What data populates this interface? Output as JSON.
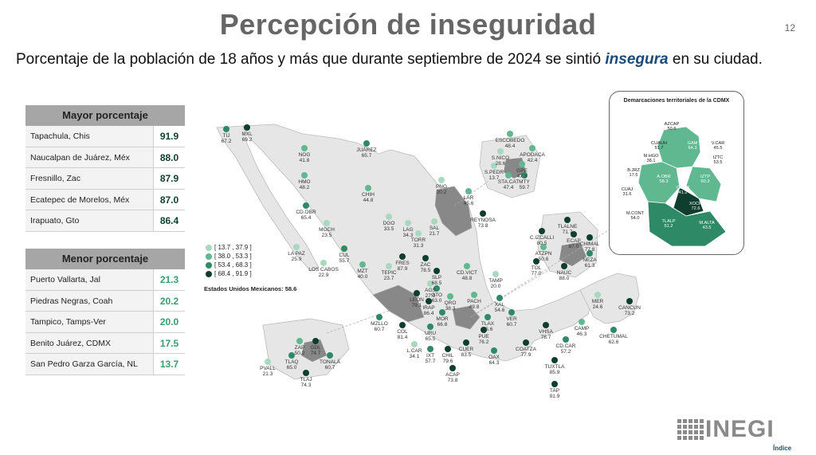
{
  "title": "Percepción de inseguridad",
  "slide_number": "12",
  "subtitle": {
    "before": "Porcentaje de la población de 18 años y más que durante septiembre de 2024 se sintió ",
    "emphasis": "insegura",
    "after": " en su ciudad."
  },
  "table_max": {
    "header": "Mayor porcentaje",
    "rows": [
      {
        "city": "Tapachula, Chis",
        "value": "91.9"
      },
      {
        "city": "Naucalpan de Juárez, Méx",
        "value": "88.0"
      },
      {
        "city": "Fresnillo, Zac",
        "value": "87.9"
      },
      {
        "city": "Ecatepec de Morelos, Méx",
        "value": "87.0"
      },
      {
        "city": "Irapuato, Gto",
        "value": "86.4"
      }
    ]
  },
  "table_min": {
    "header": "Menor porcentaje",
    "rows": [
      {
        "city": "Puerto Vallarta, Jal",
        "value": "21.3"
      },
      {
        "city": "Piedras Negras, Coah",
        "value": "20.2"
      },
      {
        "city": "Tampico, Tamps-Ver",
        "value": "20.0"
      },
      {
        "city": "Benito Juárez, CDMX",
        "value": "17.5"
      },
      {
        "city": "San Pedro Garza García, NL",
        "value": "13.7"
      }
    ]
  },
  "legend": [
    {
      "range": "[ 13.7 , 37.9 ]",
      "color": "#a8d8c0"
    },
    {
      "range": "[ 38.0 , 53.3 ]",
      "color": "#5fb88f"
    },
    {
      "range": "[ 53.4 , 68.3 ]",
      "color": "#2e8a66"
    },
    {
      "range": "[ 68.4 , 91.9 ]",
      "color": "#0f3d2e"
    }
  ],
  "national": "Estados Unidos Mexicanos: 58.6",
  "colors": {
    "c1": "#a8d8c0",
    "c2": "#5fb88f",
    "c3": "#2e8a66",
    "c4": "#0f3d2e",
    "land": "#e6e6e6",
    "highlight": "#888888"
  },
  "map_cities": [
    {
      "code": "TIJ",
      "value": "67.2",
      "c": 3
    },
    {
      "code": "MXL",
      "value": "69.2",
      "c": 4
    },
    {
      "code": "NOG",
      "value": "41.8",
      "c": 2
    },
    {
      "code": "JUÁREZ",
      "value": "65.7",
      "c": 3
    },
    {
      "code": "HMO",
      "value": "48.2",
      "c": 2
    },
    {
      "code": "CHIH",
      "value": "44.8",
      "c": 2
    },
    {
      "code": "CD.OBR",
      "value": "65.4",
      "c": 3
    },
    {
      "code": "MOCH",
      "value": "23.5",
      "c": 1
    },
    {
      "code": "LA PAZ",
      "value": "25.9",
      "c": 1
    },
    {
      "code": "CUL",
      "value": "55.7",
      "c": 3
    },
    {
      "code": "LOS CABOS",
      "value": "22.9",
      "c": 1
    },
    {
      "code": "MZT",
      "value": "40.0",
      "c": 2
    },
    {
      "code": "DGO",
      "value": "33.5",
      "c": 1
    },
    {
      "code": "TEPIC",
      "value": "23.7",
      "c": 1
    },
    {
      "code": "LAG",
      "value": "34.3",
      "c": 1
    },
    {
      "code": "TORR",
      "value": "31.3",
      "c": 1
    },
    {
      "code": "SAL",
      "value": "21.7",
      "c": 1
    },
    {
      "code": "PNG",
      "value": "20.2",
      "c": 1
    },
    {
      "code": "LAR",
      "value": "45.6",
      "c": 2
    },
    {
      "code": "REYNOSA",
      "value": "73.8",
      "c": 4
    },
    {
      "code": "FRES",
      "value": "87.9",
      "c": 4
    },
    {
      "code": "ZAC",
      "value": "78.5",
      "c": 4
    },
    {
      "code": "CD.VICT",
      "value": "48.8",
      "c": 2
    },
    {
      "code": "SLP",
      "value": "68.5",
      "c": 4
    },
    {
      "code": "AGS",
      "value": "27.0",
      "c": 1
    },
    {
      "code": "TAMP",
      "value": "20.0",
      "c": 1
    },
    {
      "code": "LEÓN",
      "value": "79.1",
      "c": 4
    },
    {
      "code": "GTO",
      "value": "63.0",
      "c": 3
    },
    {
      "code": "IRAP",
      "value": "86.4",
      "c": 4
    },
    {
      "code": "QRO",
      "value": "38.3",
      "c": 2
    },
    {
      "code": "PACH",
      "value": "49.8",
      "c": 2
    },
    {
      "code": "XAL",
      "value": "54.6",
      "c": 3
    },
    {
      "code": "MZLLO",
      "value": "60.7",
      "c": 3
    },
    {
      "code": "MOR",
      "value": "66.8",
      "c": 3
    },
    {
      "code": "TLAX",
      "value": "55.6",
      "c": 3
    },
    {
      "code": "VER",
      "value": "60.7",
      "c": 3
    },
    {
      "code": "COL",
      "value": "81.4",
      "c": 4
    },
    {
      "code": "URU",
      "value": "65.5",
      "c": 3
    },
    {
      "code": "PUE",
      "value": "76.2",
      "c": 4
    },
    {
      "code": "L.CAR",
      "value": "34.1",
      "c": 1
    },
    {
      "code": "IXT",
      "value": "57.7",
      "c": 3
    },
    {
      "code": "CHIL",
      "value": "79.6",
      "c": 4
    },
    {
      "code": "CUER",
      "value": "83.5",
      "c": 4
    },
    {
      "code": "ACAP",
      "value": "73.8",
      "c": 4
    },
    {
      "code": "OAX",
      "value": "64.3",
      "c": 3
    },
    {
      "code": "COATZA",
      "value": "77.9",
      "c": 4
    },
    {
      "code": "VHSA",
      "value": "78.7",
      "c": 4
    },
    {
      "code": "CD.CAR",
      "value": "57.2",
      "c": 3
    },
    {
      "code": "TUXTLA",
      "value": "85.9",
      "c": 4
    },
    {
      "code": "TAP",
      "value": "91.9",
      "c": 4
    },
    {
      "code": "CAMP",
      "value": "46.3",
      "c": 2
    },
    {
      "code": "MER",
      "value": "24.6",
      "c": 1
    },
    {
      "code": "CANCUN",
      "value": "73.2",
      "c": 4
    },
    {
      "code": "CHETUMAL",
      "value": "62.6",
      "c": 3
    },
    {
      "code": "ESCOBEDO",
      "value": "48.4",
      "c": 2
    },
    {
      "code": "S.NICO",
      "value": "28.6",
      "c": 1
    },
    {
      "code": "APODACA",
      "value": "42.4",
      "c": 2
    },
    {
      "code": "S.PEDR",
      "value": "13.7",
      "c": 1
    },
    {
      "code": "GPE",
      "value": "47.3",
      "c": 2
    },
    {
      "code": "MTY",
      "value": "59.7",
      "c": 3
    },
    {
      "code": "STA.CAT",
      "value": "47.4",
      "c": 2
    },
    {
      "code": "TLALNE",
      "value": "71.7",
      "c": 4
    },
    {
      "code": "C.IZCALLI",
      "value": "80.5",
      "c": 4
    },
    {
      "code": "ECAP",
      "value": "87.0",
      "c": 4
    },
    {
      "code": "CHIMAL",
      "value": "77.8",
      "c": 4
    },
    {
      "code": "ATZPN",
      "value": "50.6",
      "c": 2
    },
    {
      "code": "NEZA",
      "value": "61.3",
      "c": 3
    },
    {
      "code": "TOL",
      "value": "77.0",
      "c": 4
    },
    {
      "code": "NAUC",
      "value": "88.0",
      "c": 4
    },
    {
      "code": "ZAP",
      "value": "50.2",
      "c": 2
    },
    {
      "code": "GDL",
      "value": "74.7",
      "c": 4
    },
    {
      "code": "TLAQ",
      "value": "65.0",
      "c": 3
    },
    {
      "code": "TONALÁ",
      "value": "60.7",
      "c": 3
    },
    {
      "code": "PVALL",
      "value": "21.3",
      "c": 1
    },
    {
      "code": "TLAJ",
      "value": "74.3",
      "c": 4
    }
  ],
  "cdmx": {
    "title": "Demarcaciones territoriales de la CDMX",
    "labels": [
      {
        "code": "AZCAP",
        "value": "50.6"
      },
      {
        "code": "GAM",
        "value": "64.3"
      },
      {
        "code": "CUAUH",
        "value": "51.7"
      },
      {
        "code": "V.CAR",
        "value": "45.5"
      },
      {
        "code": "M.HGO",
        "value": "38.1"
      },
      {
        "code": "IZTC",
        "value": "53.5"
      },
      {
        "code": "B.JRZ",
        "value": "17.5"
      },
      {
        "code": "A.OBR",
        "value": "58.3"
      },
      {
        "code": "IZTP",
        "value": "60.3"
      },
      {
        "code": "CUAJ",
        "value": "31.6"
      },
      {
        "code": "COYO",
        "value": "41.2"
      },
      {
        "code": "TLHC",
        "value": "59.4"
      },
      {
        "code": "XOCH",
        "value": "72.6"
      },
      {
        "code": "M.CONT",
        "value": "54.0"
      },
      {
        "code": "TLALP",
        "value": "51.2"
      },
      {
        "code": "M.ALTA",
        "value": "43.5"
      }
    ]
  },
  "logo": {
    "word": "INEGI"
  },
  "index_link": "Índice"
}
